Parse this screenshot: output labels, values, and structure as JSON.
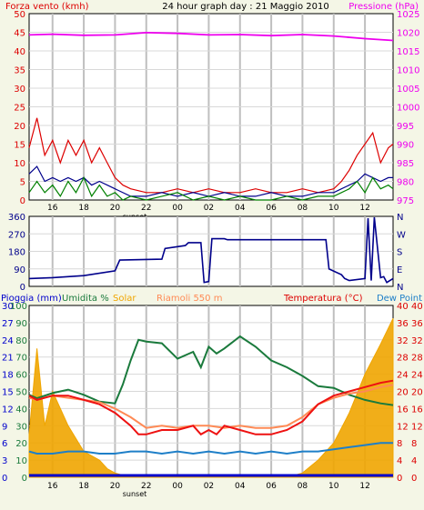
{
  "header": {
    "left_label": "Forza vento (kmh)",
    "center_label": "24 hour graph day : 21 Maggio 2010",
    "right_label": "Pressione (hPa)"
  },
  "colors": {
    "background": "#f4f6e6",
    "grid": "#bfbfbf",
    "wind_gust": "#dd0000",
    "wind_avg": "#00008b",
    "wind_low": "#008000",
    "pressure": "#ee00ee",
    "direction": "#00008b",
    "temperature": "#ee1111",
    "dew_point": "#1e7fc8",
    "humidity": "#1a7a3c",
    "solar": "#f0a500",
    "riamoli": "#ff8a55",
    "rain": "#0000cc"
  },
  "time_labels": {
    "ticks": [
      "16",
      "18",
      "20",
      "22",
      "00",
      "02",
      "04",
      "06",
      "08",
      "10",
      "12"
    ],
    "sunset_label": "sunset"
  },
  "chart_data": [
    {
      "type": "line",
      "title": "24 hour graph day : 21 Maggio 2010",
      "ylabel_left": "Forza vento (kmh)",
      "ylabel_right": "Pressione (hPa)",
      "x_range": [
        "14:30",
        "13:50"
      ],
      "ylim_left": [
        0,
        50
      ],
      "ylim_right": [
        975,
        1025
      ],
      "left_ticks": [
        "50",
        "45",
        "40",
        "35",
        "30",
        "25",
        "20",
        "15",
        "10",
        "5",
        "0"
      ],
      "right_ticks": [
        "1025",
        "1020",
        "1015",
        "1010",
        "1005",
        "1000",
        "995",
        "990",
        "985",
        "980",
        "975"
      ],
      "series": [
        {
          "color": "#ee00ee",
          "axis": "right",
          "x": [
            14.5,
            16,
            18,
            20,
            22,
            24,
            26,
            28,
            30,
            32,
            34,
            36,
            37.8
          ],
          "values": [
            1019.3,
            1019.5,
            1019.2,
            1019.3,
            1019.9,
            1019.7,
            1019.3,
            1019.4,
            1019.1,
            1019.4,
            1019.0,
            1018.3,
            1017.8
          ]
        },
        {
          "color": "#dd0000",
          "axis": "left",
          "x": [
            14.5,
            15,
            15.5,
            16,
            16.5,
            17,
            17.5,
            18,
            18.5,
            19,
            19.5,
            20,
            20.5,
            21,
            22,
            23,
            24,
            25,
            26,
            27,
            28,
            29,
            30,
            31,
            32,
            33,
            34,
            34.5,
            35,
            35.5,
            36,
            36.5,
            37,
            37.5,
            37.8
          ],
          "values": [
            14,
            22,
            12,
            16,
            10,
            16,
            12,
            16,
            10,
            14,
            10,
            6,
            4,
            3,
            2,
            2,
            3,
            2,
            3,
            2,
            2,
            3,
            2,
            2,
            3,
            2,
            3,
            5,
            8,
            12,
            15,
            18,
            10,
            14,
            15
          ]
        },
        {
          "color": "#00008b",
          "axis": "left",
          "x": [
            14.5,
            15,
            15.5,
            16,
            16.5,
            17,
            17.5,
            18,
            18.5,
            19,
            19.5,
            20,
            21,
            22,
            23,
            24,
            25,
            26,
            27,
            28,
            29,
            30,
            31,
            32,
            33,
            34,
            34.5,
            35,
            35.5,
            36,
            36.5,
            37,
            37.5,
            37.8
          ],
          "values": [
            7,
            9,
            5,
            6,
            5,
            6,
            5,
            6,
            4,
            5,
            4,
            3,
            1,
            1,
            2,
            1,
            2,
            1,
            2,
            1,
            1,
            2,
            1,
            1,
            2,
            2,
            3,
            4,
            5,
            7,
            6,
            5,
            6,
            6
          ]
        },
        {
          "color": "#008000",
          "axis": "left",
          "x": [
            14.5,
            15,
            15.5,
            16,
            16.5,
            17,
            17.5,
            18,
            18.5,
            19,
            19.5,
            20,
            20.5,
            21,
            22,
            23,
            24,
            25,
            26,
            27,
            28,
            29,
            30,
            31,
            32,
            33,
            34,
            34.5,
            35,
            35.5,
            36,
            36.5,
            37,
            37.5,
            37.8
          ],
          "values": [
            2,
            5,
            2,
            4,
            1,
            5,
            2,
            6,
            1,
            4,
            1,
            2,
            0,
            1,
            0,
            1,
            2,
            0,
            1,
            0,
            1,
            0,
            0,
            1,
            0,
            1,
            1,
            2,
            3,
            5,
            2,
            6,
            3,
            4,
            3
          ]
        }
      ]
    },
    {
      "type": "line",
      "ylim": [
        0,
        360
      ],
      "left_ticks": [
        "360",
        "270",
        "180",
        "90",
        "0"
      ],
      "right_ticks": [
        "N",
        "W",
        "S",
        "E",
        "N"
      ],
      "series": [
        {
          "color": "#00008b",
          "x": [
            14.5,
            16,
            18,
            20,
            20.3,
            23,
            23.2,
            24.5,
            24.7,
            25.5,
            25.7,
            26,
            26.2,
            27,
            27.2,
            33.5,
            33.7,
            34.5,
            34.7,
            35,
            36,
            36.2,
            36.4,
            36.6,
            37,
            37.2,
            37.4,
            37.8
          ],
          "values": [
            40,
            45,
            55,
            80,
            135,
            140,
            195,
            210,
            225,
            225,
            20,
            25,
            245,
            245,
            240,
            240,
            90,
            60,
            40,
            30,
            40,
            350,
            30,
            355,
            45,
            50,
            20,
            40
          ]
        }
      ]
    },
    {
      "type": "area",
      "ylabel_left": "Pioggia (mm)",
      "ylabel_humidity": "Umidita %",
      "ylabel_solar": "Solar",
      "ylabel_riamoli": "Riamoli 550 m",
      "ylabel_right": "Temperatura (°C)",
      "ylabel_dew": "Dew Point",
      "ylim_temp": [
        0,
        40
      ],
      "ylim_humidity": [
        0,
        100
      ],
      "rain_ticks": [
        "30",
        "27",
        "24",
        "21",
        "18",
        "15",
        "12",
        "9",
        "6",
        "3",
        "0"
      ],
      "humidity_ticks": [
        "100",
        "90",
        "80",
        "70",
        "60",
        "50",
        "40",
        "30",
        "20",
        "10",
        "0"
      ],
      "temp_ticks_left": [
        "40",
        "36",
        "32",
        "28",
        "24",
        "20",
        "16",
        "12",
        "8",
        "4",
        "0"
      ],
      "temp_ticks_right": [
        "40",
        "36",
        "32",
        "28",
        "24",
        "20",
        "16",
        "12",
        "8",
        "4",
        "0"
      ],
      "series": [
        {
          "color": "#f0a500",
          "kind": "solar_area",
          "x": [
            14.5,
            15,
            15.5,
            16,
            17,
            18,
            19,
            19.5,
            20,
            21,
            31,
            32,
            33,
            34,
            35,
            36,
            37,
            37.8
          ],
          "values": [
            10,
            30,
            12,
            20,
            12,
            6,
            4,
            2,
            1,
            0,
            0,
            1,
            4,
            8,
            15,
            24,
            31,
            37
          ]
        },
        {
          "color": "#1a7a3c",
          "kind": "humidity",
          "x": [
            14.5,
            15,
            16,
            17,
            18,
            19,
            20,
            20.5,
            21,
            21.5,
            22,
            23,
            24,
            25,
            25.5,
            26,
            26.5,
            27,
            28,
            29,
            30,
            31,
            32,
            33,
            34,
            35,
            36,
            37,
            37.8
          ],
          "values": [
            48,
            46,
            49,
            51,
            48,
            44,
            43,
            54,
            68,
            80,
            79,
            78,
            69,
            73,
            64,
            76,
            72,
            75,
            82,
            76,
            68,
            64,
            59,
            53,
            52,
            48,
            45,
            43,
            42
          ]
        },
        {
          "color": "#ff8a55",
          "kind": "riamoli",
          "x": [
            14.5,
            15,
            16,
            17,
            18,
            19,
            20,
            21,
            22,
            23,
            24,
            25,
            26,
            27,
            28,
            29,
            30,
            31,
            32,
            33,
            34,
            35,
            36,
            37,
            37.8
          ],
          "values": [
            18.5,
            18,
            19,
            18.5,
            18,
            17.5,
            16,
            14,
            11.5,
            12,
            11.5,
            12,
            12,
            11.5,
            12,
            11.5,
            11.5,
            12,
            14,
            17,
            18.5,
            19.5,
            20,
            21,
            21.5
          ]
        },
        {
          "color": "#ee1111",
          "kind": "temperature",
          "x": [
            14.5,
            15,
            16,
            17,
            18,
            19,
            20,
            21,
            21.5,
            22,
            23,
            24,
            25,
            25.5,
            26,
            26.5,
            27,
            28,
            29,
            30,
            31,
            32,
            33,
            34,
            35,
            36,
            37,
            37.8
          ],
          "values": [
            19,
            18,
            19,
            19,
            18,
            17,
            15,
            12,
            10,
            10,
            11,
            11,
            12,
            10,
            11,
            10,
            12,
            11,
            10,
            10,
            11,
            13,
            17,
            19,
            20,
            21,
            22,
            22.5
          ]
        },
        {
          "color": "#1e7fc8",
          "kind": "dew_point",
          "x": [
            14.5,
            15,
            16,
            17,
            18,
            19,
            20,
            21,
            22,
            23,
            24,
            25,
            26,
            27,
            28,
            29,
            30,
            31,
            32,
            33,
            34,
            35,
            36,
            37,
            37.8
          ],
          "values": [
            6,
            5.5,
            5.5,
            6,
            6,
            5.5,
            5.5,
            6,
            6,
            5.5,
            6,
            5.5,
            6,
            5.5,
            6,
            5.5,
            6,
            5.5,
            6,
            6,
            6.5,
            7,
            7.5,
            8,
            8
          ]
        },
        {
          "color": "#0000cc",
          "kind": "rain",
          "x": [
            14.5,
            37.8
          ],
          "values": [
            0,
            0
          ]
        }
      ]
    }
  ]
}
